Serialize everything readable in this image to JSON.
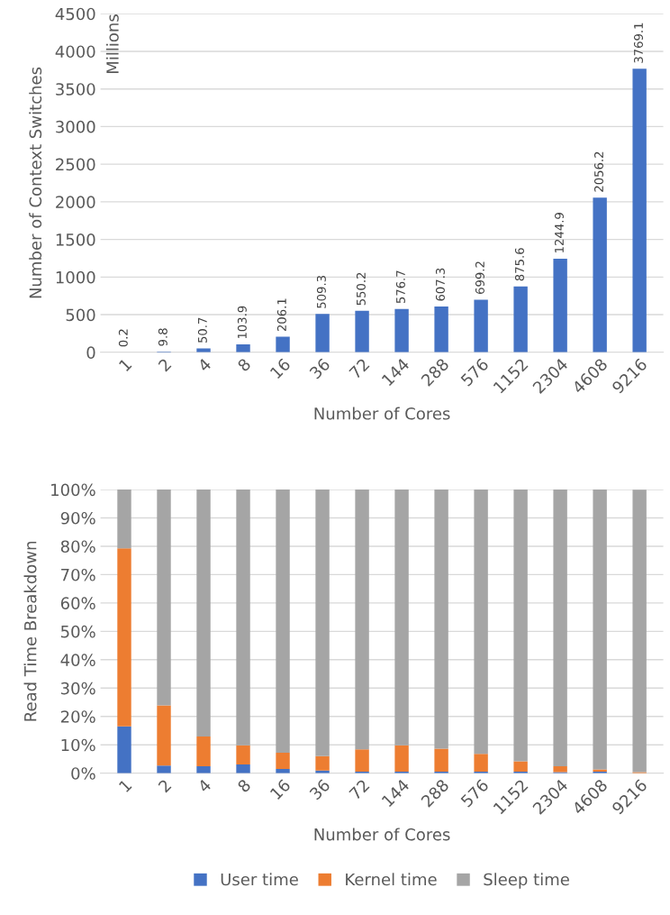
{
  "chart_data": [
    {
      "type": "bar",
      "ylabel": "Number of Context Switches",
      "xlabel": "Number of Cores",
      "annotations": [
        "Millions"
      ],
      "categories": [
        "1",
        "2",
        "4",
        "8",
        "16",
        "36",
        "72",
        "144",
        "288",
        "576",
        "1152",
        "2304",
        "4608",
        "9216"
      ],
      "values": [
        0.2,
        9.8,
        50.7,
        103.9,
        206.1,
        509.3,
        550.2,
        576.7,
        607.3,
        699.2,
        875.6,
        1244.9,
        2056.2,
        3769.1
      ],
      "color": "#4472c4",
      "data_labels": true,
      "ylim": [
        0,
        4500
      ],
      "yticks": [
        0,
        500,
        1000,
        1500,
        2000,
        2500,
        3000,
        3500,
        4000,
        4500
      ],
      "grid": "y",
      "legend": false
    },
    {
      "type": "bar",
      "stacked": true,
      "ylabel": "Read Time Breakdown",
      "xlabel": "Number of Cores",
      "categories": [
        "1",
        "2",
        "4",
        "8",
        "16",
        "36",
        "72",
        "144",
        "288",
        "576",
        "1152",
        "2304",
        "4608",
        "9216"
      ],
      "series": [
        {
          "name": "User time",
          "color": "#4472c4",
          "values": [
            16.5,
            2.7,
            2.4,
            3.1,
            1.5,
            0.9,
            0.5,
            0.5,
            0.5,
            0.5,
            0.5,
            0.4,
            0.5,
            null
          ]
        },
        {
          "name": "Kernel time",
          "color": "#ed7d31",
          "values": [
            62.8,
            21.2,
            10.5,
            6.7,
            5.7,
            5.1,
            7.9,
            9.3,
            8.1,
            6.3,
            3.7,
            2.0,
            0.8,
            0.4
          ]
        },
        {
          "name": "Sleep time",
          "color": "#a5a5a5",
          "values": [
            20.7,
            76.1,
            87.1,
            90.2,
            92.8,
            94.0,
            91.6,
            90.2,
            91.4,
            93.2,
            95.8,
            97.6,
            98.7,
            99.5
          ]
        }
      ],
      "ylim": [
        0,
        100
      ],
      "yticks": [
        {
          "value": 0,
          "label": "0%"
        },
        {
          "value": 10,
          "label": "10%"
        },
        {
          "value": 20,
          "label": "20%"
        },
        {
          "value": 30,
          "label": "30%"
        },
        {
          "value": 40,
          "label": "40%"
        },
        {
          "value": 50,
          "label": "50%"
        },
        {
          "value": 60,
          "label": "60%"
        },
        {
          "value": 70,
          "label": "70%"
        },
        {
          "value": 80,
          "label": "80%"
        },
        {
          "value": 90,
          "label": "90%"
        },
        {
          "value": 100,
          "label": "100%"
        }
      ],
      "grid": "y",
      "legend": "bottom"
    }
  ]
}
